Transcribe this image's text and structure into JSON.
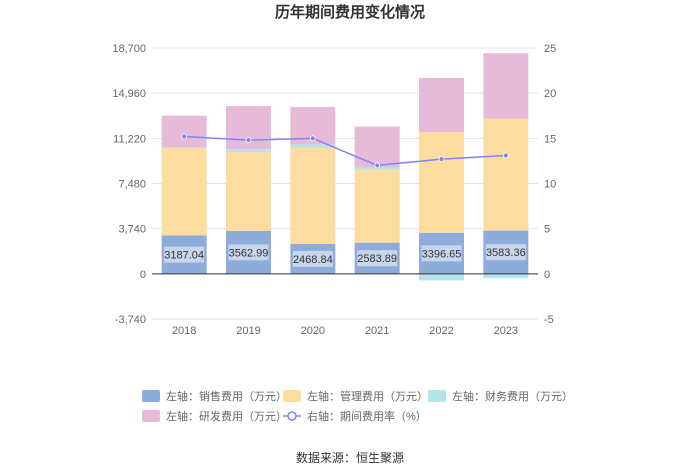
{
  "chart_data": {
    "type": "bar",
    "stacked": true,
    "title": "历年期间费用变化情况",
    "categories": [
      "2018",
      "2019",
      "2020",
      "2021",
      "2022",
      "2023"
    ],
    "series": [
      {
        "name": "左轴：销售费用（万元）",
        "axis": "left",
        "color": "#8eacd9",
        "values": [
          3187.04,
          3562.99,
          2468.84,
          2583.89,
          3396.65,
          3583.36
        ],
        "labels": [
          "3187.04",
          "3562.99",
          "2468.84",
          "2583.89",
          "3396.65",
          "3583.36"
        ]
      },
      {
        "name": "左轴：管理费用（万元）",
        "axis": "left",
        "color": "#fddca0",
        "values": [
          7230,
          6510,
          7990,
          6060,
          8330,
          9270
        ]
      },
      {
        "name": "左轴：财务费用（万元）",
        "axis": "left",
        "color": "#b3e4ea",
        "values": [
          50,
          250,
          260,
          140,
          -540,
          -360
        ]
      },
      {
        "name": "左轴：研发费用（万元）",
        "axis": "left",
        "color": "#e8bada",
        "values": [
          2630,
          3570,
          3100,
          3410,
          4500,
          5420
        ]
      }
    ],
    "line": {
      "name": "右轴：期间费用率（%）",
      "axis": "right",
      "color": "#7b86f0",
      "values": [
        15.2,
        14.8,
        15.0,
        12.0,
        12.7,
        13.1
      ]
    },
    "left_axis": {
      "min": -3740,
      "max": 18700,
      "ticks": [
        -3740,
        0,
        3740,
        7480,
        11220,
        14960,
        18700
      ],
      "tick_labels": [
        "-3,740",
        "0",
        "3,740",
        "7,480",
        "11,220",
        "14,960",
        "18,700"
      ]
    },
    "right_axis": {
      "min": -5,
      "max": 25,
      "ticks": [
        -5,
        0,
        5,
        10,
        15,
        20,
        25
      ],
      "tick_labels": [
        "-5",
        "0",
        "5",
        "10",
        "15",
        "20",
        "25"
      ]
    },
    "grid": true,
    "legend_position": "bottom"
  },
  "source_text": "数据来源：恒生聚源"
}
